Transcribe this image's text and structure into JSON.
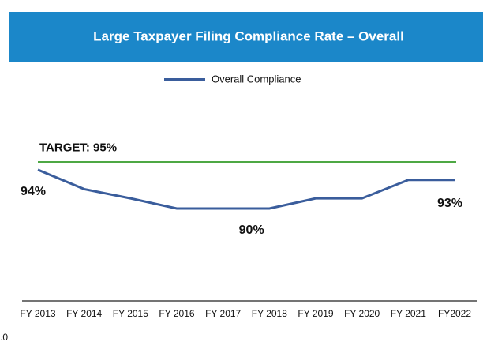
{
  "chart_data": {
    "type": "line",
    "title": "Large Taxpayer Filing Compliance Rate – Overall",
    "categories": [
      "FY 2013",
      "FY 2014",
      "FY 2015",
      "FY 2016",
      "FY 2017",
      "FY 2018",
      "FY 2019",
      "FY 2020",
      "FY 2021",
      "FY2022"
    ],
    "series": [
      {
        "name": "Overall Compliance",
        "color": "#3a5d9c",
        "values": [
          94.2,
          92.1,
          91.1,
          90,
          90,
          90,
          91.1,
          91.1,
          93.1,
          93.1
        ],
        "value_labels": [
          "94%",
          null,
          null,
          null,
          "90%",
          null,
          null,
          null,
          null,
          "93%"
        ]
      }
    ],
    "target": {
      "value": 95,
      "label": "TARGET: 95%",
      "color": "#4ea844"
    },
    "ylim": [
      80,
      100
    ],
    "corner_label": ".0",
    "legend": "top"
  }
}
